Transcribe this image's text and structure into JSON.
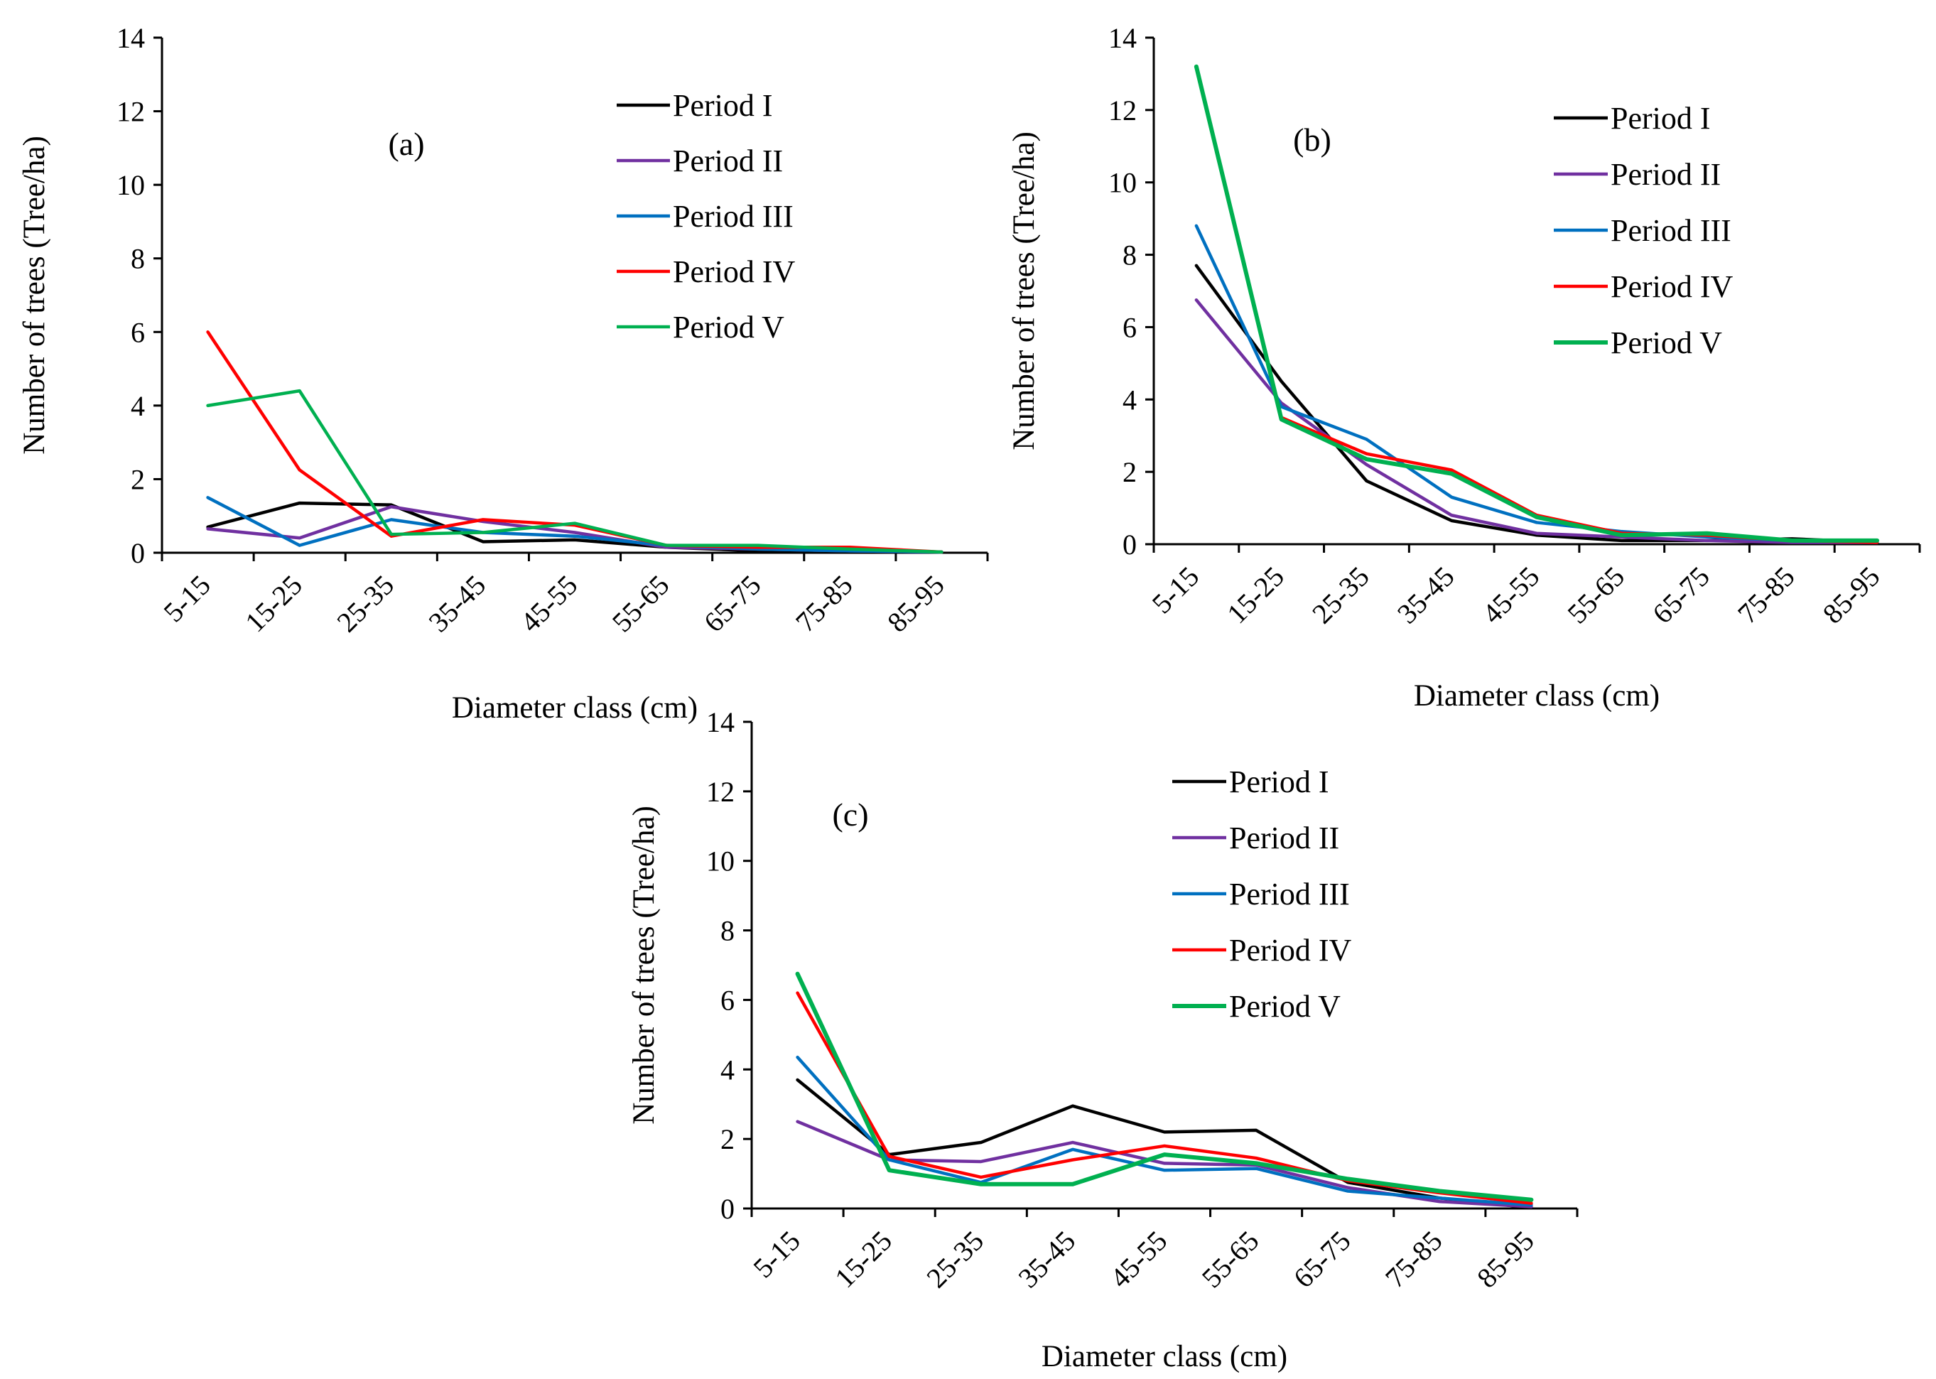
{
  "chart_data": [
    {
      "type": "line",
      "panel_label": "(a)",
      "xlabel": "Diameter class (cm)",
      "ylabel": "Number of trees (Tree/ha)",
      "ylim": [
        0,
        14
      ],
      "yticks": [
        0,
        2,
        4,
        6,
        8,
        10,
        12,
        14
      ],
      "categories": [
        "5-15",
        "15-25",
        "25-35",
        "35-45",
        "45-55",
        "55-65",
        "65-75",
        "75-85",
        "85-95"
      ],
      "legend_position": "top-right",
      "series": [
        {
          "name": "Period I",
          "color": "#000000",
          "values": [
            0.7,
            1.35,
            1.3,
            0.3,
            0.35,
            0.15,
            0.05,
            0.05,
            0.02
          ]
        },
        {
          "name": "Period II",
          "color": "#7030A0",
          "values": [
            0.65,
            0.4,
            1.25,
            0.85,
            0.55,
            0.15,
            0.1,
            0.05,
            0.02
          ]
        },
        {
          "name": "Period III",
          "color": "#0070C0",
          "values": [
            1.5,
            0.2,
            0.9,
            0.55,
            0.45,
            0.2,
            0.1,
            0.05,
            0.02
          ]
        },
        {
          "name": "Period IV",
          "color": "#FF0000",
          "values": [
            6.0,
            2.25,
            0.45,
            0.9,
            0.75,
            0.2,
            0.15,
            0.15,
            0.02
          ]
        },
        {
          "name": "Period V",
          "color": "#00B050",
          "values": [
            4.0,
            4.4,
            0.5,
            0.55,
            0.8,
            0.2,
            0.2,
            0.1,
            0.02
          ]
        }
      ]
    },
    {
      "type": "line",
      "panel_label": "(b)",
      "xlabel": "Diameter class (cm)",
      "ylabel": "Number of trees (Tree/ha)",
      "ylim": [
        0,
        14
      ],
      "yticks": [
        0,
        2,
        4,
        6,
        8,
        10,
        12,
        14
      ],
      "categories": [
        "5-15",
        "15-25",
        "25-35",
        "35-45",
        "45-55",
        "55-65",
        "65-75",
        "75-85",
        "85-95"
      ],
      "legend_position": "top-right",
      "series": [
        {
          "name": "Period I",
          "color": "#000000",
          "values": [
            7.7,
            4.5,
            1.75,
            0.65,
            0.25,
            0.1,
            0.1,
            0.15,
            0.05
          ]
        },
        {
          "name": "Period II",
          "color": "#7030A0",
          "values": [
            6.75,
            3.9,
            2.2,
            0.8,
            0.3,
            0.2,
            0.1,
            0.05,
            0.05
          ]
        },
        {
          "name": "Period III",
          "color": "#0070C0",
          "values": [
            8.8,
            3.8,
            2.9,
            1.3,
            0.6,
            0.35,
            0.2,
            0.1,
            0.05
          ]
        },
        {
          "name": "Period IV",
          "color": "#FF0000",
          "values": [
            13.2,
            3.5,
            2.5,
            2.05,
            0.8,
            0.3,
            0.25,
            0.1,
            0.05
          ]
        },
        {
          "name": "Period V",
          "color": "#00B050",
          "values": [
            13.2,
            3.45,
            2.35,
            1.95,
            0.75,
            0.25,
            0.3,
            0.1,
            0.1
          ]
        }
      ]
    },
    {
      "type": "line",
      "panel_label": "(c)",
      "xlabel": "Diameter class (cm)",
      "ylabel": "Number of trees (Tree/ha)",
      "ylim": [
        0,
        14
      ],
      "yticks": [
        0,
        2,
        4,
        6,
        8,
        10,
        12,
        14
      ],
      "categories": [
        "5-15",
        "15-25",
        "25-35",
        "35-45",
        "45-55",
        "55-65",
        "65-75",
        "75-85",
        "85-95"
      ],
      "legend_position": "top-right",
      "series": [
        {
          "name": "Period I",
          "color": "#000000",
          "values": [
            3.7,
            1.55,
            1.9,
            2.95,
            2.2,
            2.25,
            0.75,
            0.3,
            0.02
          ]
        },
        {
          "name": "Period II",
          "color": "#7030A0",
          "values": [
            2.5,
            1.4,
            1.35,
            1.9,
            1.3,
            1.25,
            0.6,
            0.2,
            0.05
          ]
        },
        {
          "name": "Period III",
          "color": "#0070C0",
          "values": [
            4.35,
            1.4,
            0.75,
            1.7,
            1.1,
            1.15,
            0.5,
            0.3,
            0.1
          ]
        },
        {
          "name": "Period IV",
          "color": "#FF0000",
          "values": [
            6.2,
            1.5,
            0.9,
            1.4,
            1.8,
            1.45,
            0.8,
            0.45,
            0.15
          ]
        },
        {
          "name": "Period V",
          "color": "#00B050",
          "values": [
            6.75,
            1.1,
            0.7,
            0.7,
            1.55,
            1.3,
            0.85,
            0.5,
            0.25
          ]
        }
      ]
    }
  ]
}
